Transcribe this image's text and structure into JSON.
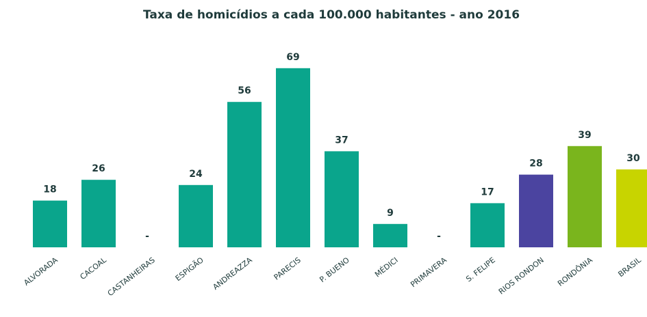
{
  "chart_data": {
    "type": "bar",
    "title": "Taxa de homicídios a cada 100.000 habitantes - ano 2016",
    "categories": [
      "ALVORADA",
      "CACOAL",
      "CASTANHEIRAS",
      "ESPIGÃO",
      "ANDREAZZA",
      "PARECIS",
      "P. BUENO",
      "MÉDICI",
      "PRIMAVERA",
      "S. FELIPE",
      "RIOS RONDON",
      "RONDÔNIA",
      "BRASIL"
    ],
    "values": [
      18,
      26,
      null,
      24,
      56,
      69,
      37,
      9,
      null,
      17,
      28,
      39,
      30
    ],
    "value_labels": [
      "18",
      "26",
      "-",
      "24",
      "56",
      "69",
      "37",
      "9",
      "-",
      "17",
      "28",
      "39",
      "30"
    ],
    "colors": [
      "#0aa58c",
      "#0aa58c",
      "#0aa58c",
      "#0aa58c",
      "#0aa58c",
      "#0aa58c",
      "#0aa58c",
      "#0aa58c",
      "#0aa58c",
      "#0aa58c",
      "#4b44a0",
      "#7ab51d",
      "#c8d400"
    ]
  }
}
